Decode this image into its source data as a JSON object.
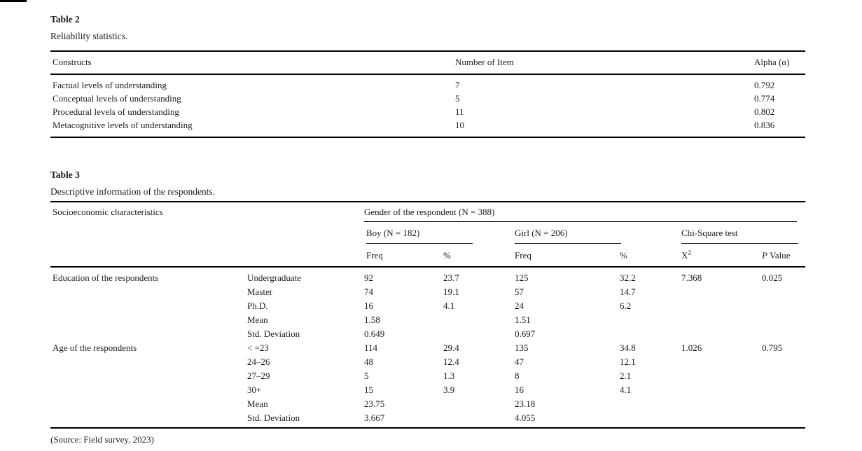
{
  "page": {
    "background": "#ffffff",
    "text_color": "#1b1b1b",
    "rule_color": "#000000"
  },
  "table2": {
    "label": "Table 2",
    "caption": "Reliability statistics.",
    "columns": [
      "Constructs",
      "Number of Item",
      "Alpha (α)"
    ],
    "rows": [
      [
        "Factual levels of understanding",
        "7",
        "0.792"
      ],
      [
        "Conceptual levels of understanding",
        "5",
        "0.774"
      ],
      [
        "Procedural levels of understanding",
        "11",
        "0.802"
      ],
      [
        "Metacognitive levels of understanding",
        "10",
        "0.836"
      ]
    ]
  },
  "table3": {
    "label": "Table 3",
    "caption": "Descriptive information of the respondents.",
    "header": {
      "col1": "Socioeconomic characteristics",
      "gender_group": "Gender of the respondent (N = 388)",
      "boy_group": "Boy (N = 182)",
      "girl_group": "Girl (N = 206)",
      "chi_group": "Chi-Square test",
      "boy_freq": "Freq",
      "boy_pct": "%",
      "girl_freq": "Freq",
      "girl_pct": "%",
      "chi_base": "X",
      "chi_sup": "2",
      "p_label": "P",
      "p_word": "Value"
    },
    "rows": [
      [
        "Education of the respondents",
        "Undergraduate",
        "92",
        "23.7",
        "125",
        "32.2",
        "7.368",
        "0.025"
      ],
      [
        "",
        "Master",
        "74",
        "19.1",
        "57",
        "14.7",
        "",
        ""
      ],
      [
        "",
        "Ph.D.",
        "16",
        "4.1",
        "24",
        "6.2",
        "",
        ""
      ],
      [
        "",
        "Mean",
        "1.58",
        "",
        "1.51",
        "",
        "",
        ""
      ],
      [
        "",
        "Std. Deviation",
        "0.649",
        "",
        "0.697",
        "",
        "",
        ""
      ],
      [
        "Age of the respondents",
        "< =23",
        "114",
        "29.4",
        "135",
        "34.8",
        "1.026",
        "0.795"
      ],
      [
        "",
        "24–26",
        "48",
        "12.4",
        "47",
        "12.1",
        "",
        ""
      ],
      [
        "",
        "27–29",
        "5",
        "1.3",
        "8",
        "2.1",
        "",
        ""
      ],
      [
        "",
        "30+",
        "15",
        "3.9",
        "16",
        "4.1",
        "",
        ""
      ],
      [
        "",
        "Mean",
        "23.75",
        "",
        "23.18",
        "",
        "",
        ""
      ],
      [
        "",
        "Std. Deviation",
        "3.667",
        "",
        "4.055",
        "",
        "",
        ""
      ]
    ],
    "source": "(Source: Field survey, 2023)"
  }
}
